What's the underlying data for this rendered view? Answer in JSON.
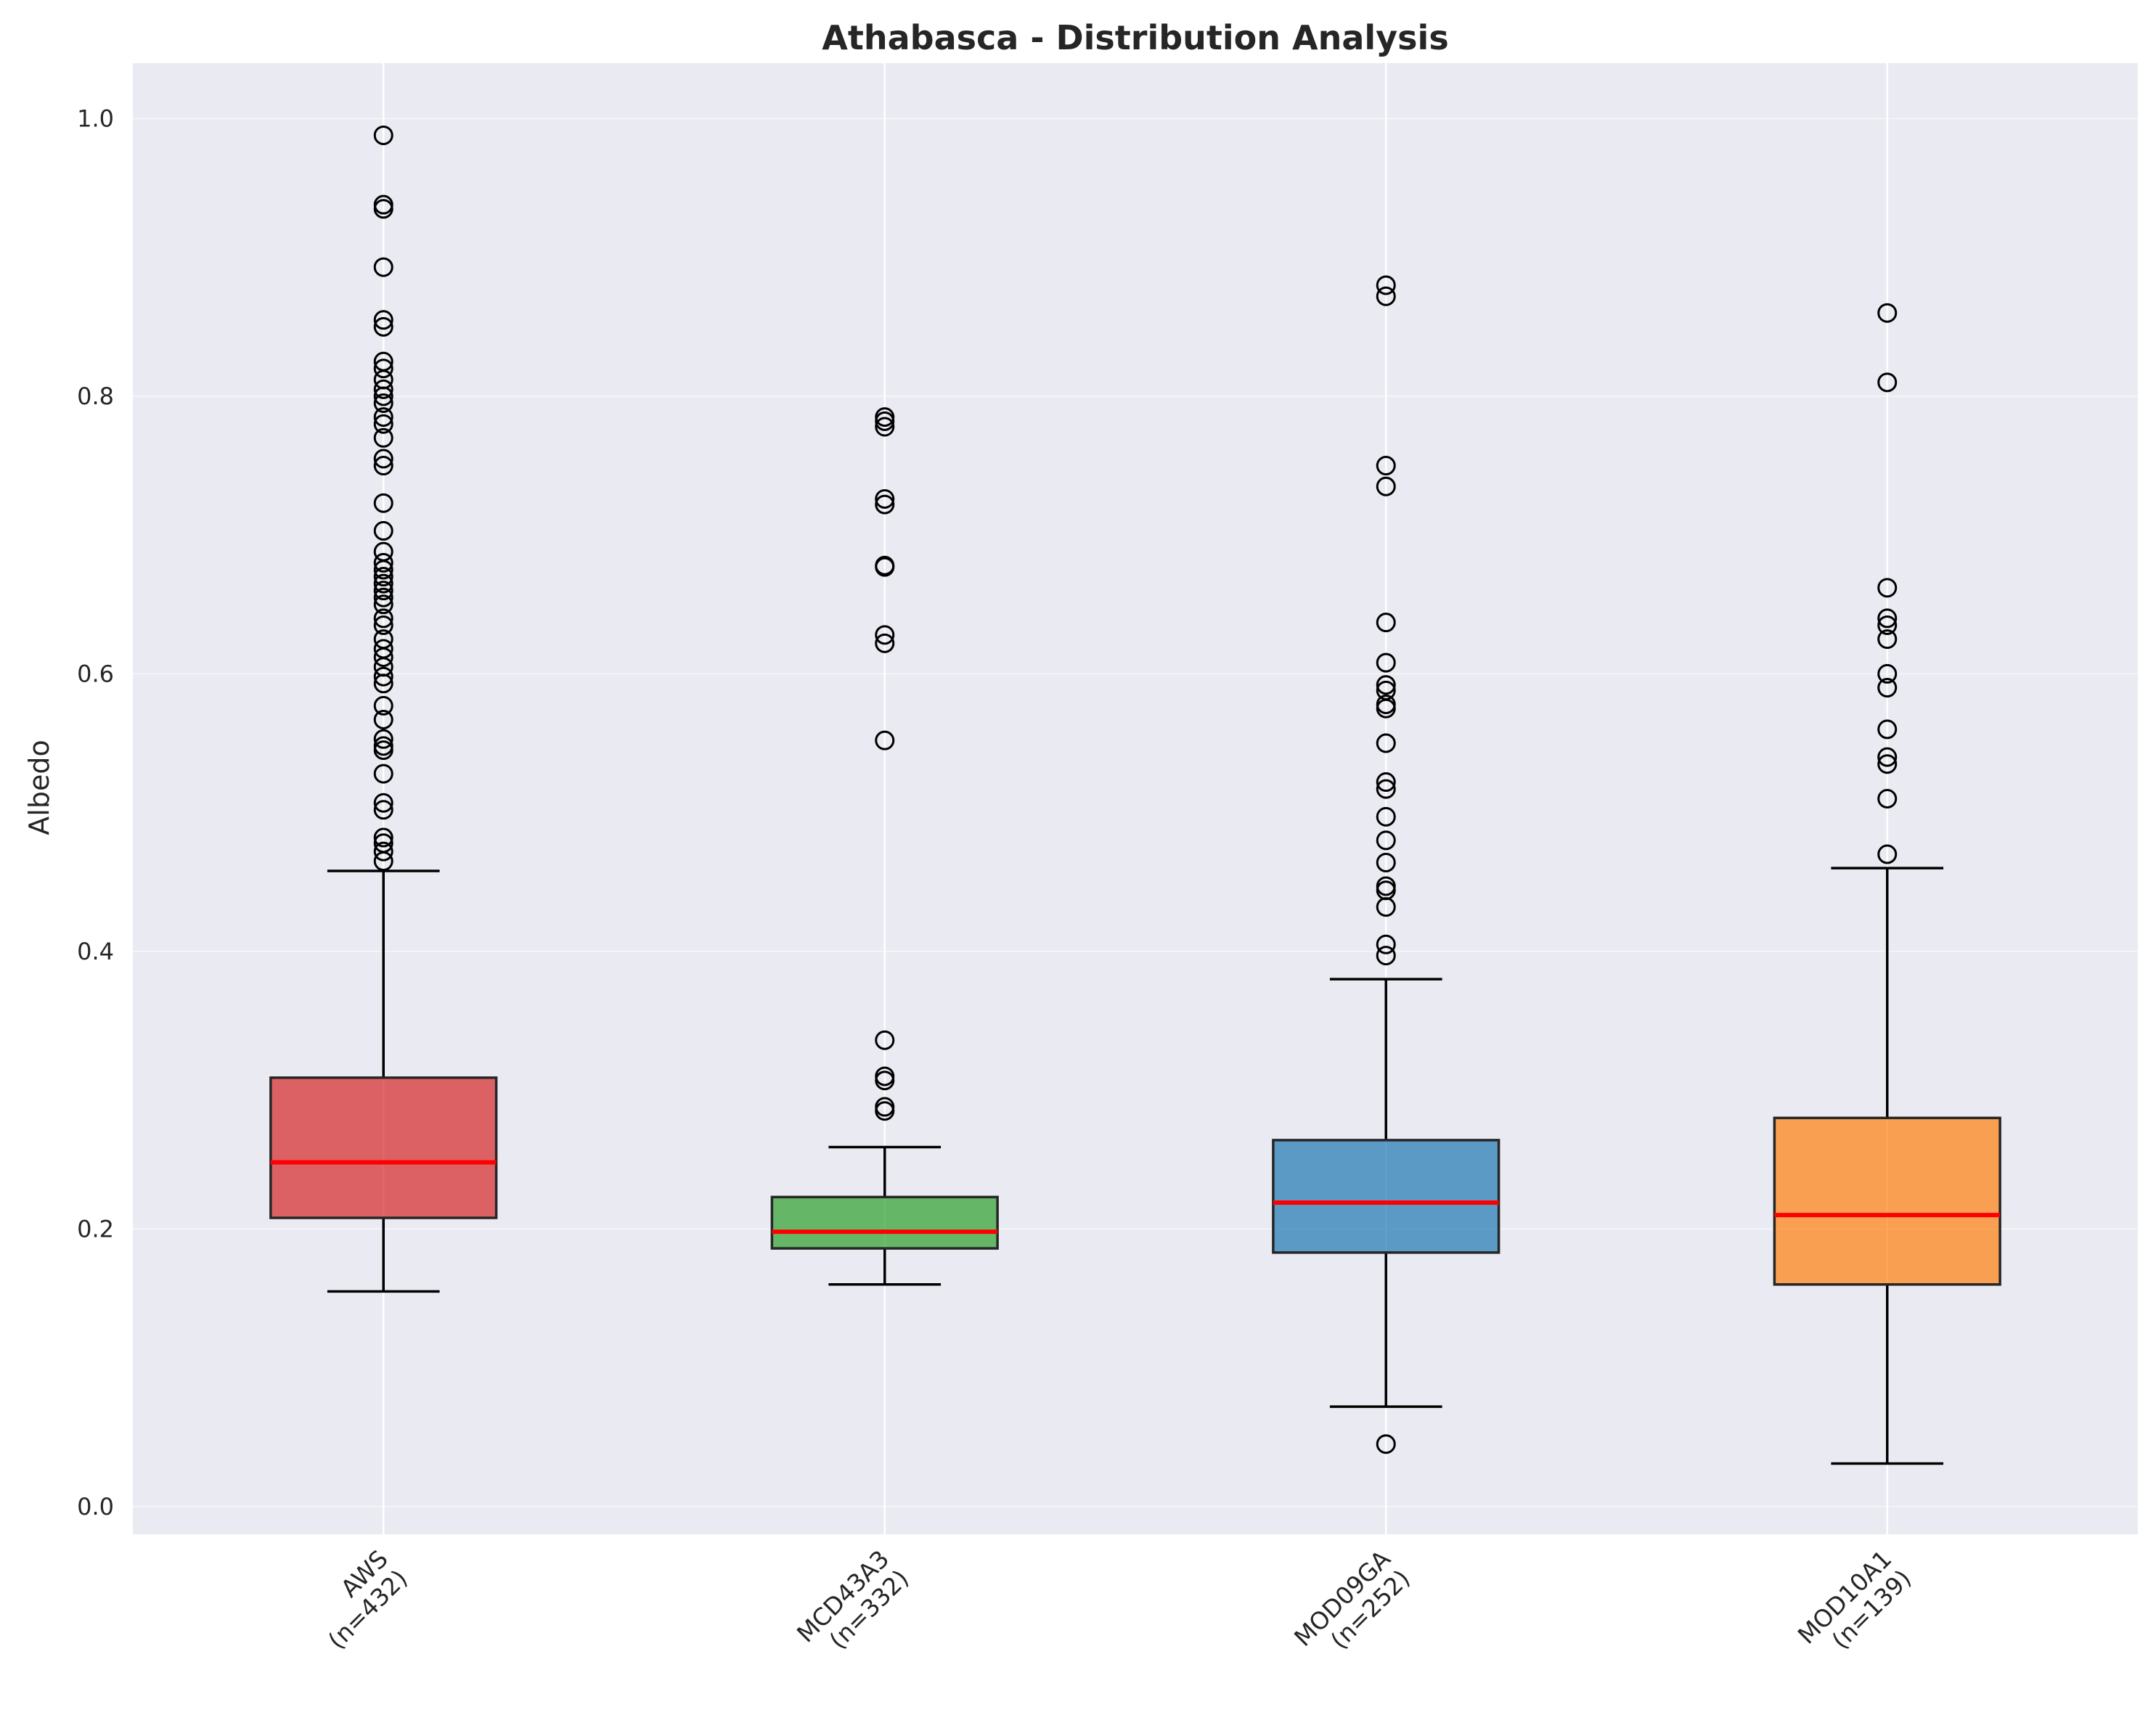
{
  "chart_data": {
    "type": "box",
    "title": "Athabasca - Distribution Analysis",
    "xlabel": "",
    "ylabel": "Albedo",
    "ylim": [
      -0.02,
      1.04
    ],
    "yticks": [
      0.0,
      0.2,
      0.4,
      0.6,
      0.8,
      1.0
    ],
    "ytick_labels": [
      "0.0",
      "0.2",
      "0.4",
      "0.6",
      "0.8",
      "1.0"
    ],
    "grid": true,
    "colors": {
      "background": "#eaeaf2",
      "grid": "#ffffff",
      "median": "#ff0000",
      "whisker": "#000000",
      "box_edge": "#262626"
    },
    "series": [
      {
        "category": "AWS",
        "n_label": "(n=432)",
        "color": "#d62728",
        "whisker_low": 0.155,
        "q1": 0.208,
        "median": 0.248,
        "q3": 0.309,
        "whisker_high": 0.458,
        "outliers": [
          0.988,
          0.938,
          0.935,
          0.893,
          0.855,
          0.85,
          0.825,
          0.82,
          0.812,
          0.805,
          0.8,
          0.795,
          0.785,
          0.78,
          0.77,
          0.755,
          0.75,
          0.723,
          0.703,
          0.688,
          0.68,
          0.675,
          0.67,
          0.665,
          0.66,
          0.655,
          0.65,
          0.64,
          0.635,
          0.625,
          0.618,
          0.612,
          0.605,
          0.598,
          0.593,
          0.577,
          0.567,
          0.553,
          0.548,
          0.545,
          0.528,
          0.507,
          0.502,
          0.482,
          0.478,
          0.472,
          0.465
        ]
      },
      {
        "category": "MCD43A3",
        "n_label": "(n=332)",
        "color": "#2ca02c",
        "whisker_low": 0.16,
        "q1": 0.186,
        "median": 0.198,
        "q3": 0.223,
        "whisker_high": 0.259,
        "outliers": [
          0.785,
          0.782,
          0.778,
          0.726,
          0.722,
          0.678,
          0.677,
          0.628,
          0.622,
          0.552,
          0.336,
          0.31,
          0.307,
          0.288,
          0.285
        ]
      },
      {
        "category": "MOD09GA",
        "n_label": "(n=252)",
        "color": "#1f77b4",
        "whisker_low": 0.072,
        "q1": 0.183,
        "median": 0.219,
        "q3": 0.264,
        "whisker_high": 0.38,
        "outliers": [
          0.88,
          0.872,
          0.75,
          0.735,
          0.637,
          0.608,
          0.592,
          0.588,
          0.578,
          0.575,
          0.55,
          0.522,
          0.517,
          0.497,
          0.48,
          0.464,
          0.447,
          0.444,
          0.432,
          0.405,
          0.397,
          0.045
        ]
      },
      {
        "category": "MOD10A1",
        "n_label": "(n=139)",
        "color": "#ff7f0e",
        "whisker_low": 0.031,
        "q1": 0.16,
        "median": 0.21,
        "q3": 0.28,
        "whisker_high": 0.46,
        "outliers": [
          0.86,
          0.81,
          0.662,
          0.64,
          0.635,
          0.625,
          0.6,
          0.59,
          0.56,
          0.54,
          0.535,
          0.51,
          0.47
        ]
      }
    ]
  }
}
